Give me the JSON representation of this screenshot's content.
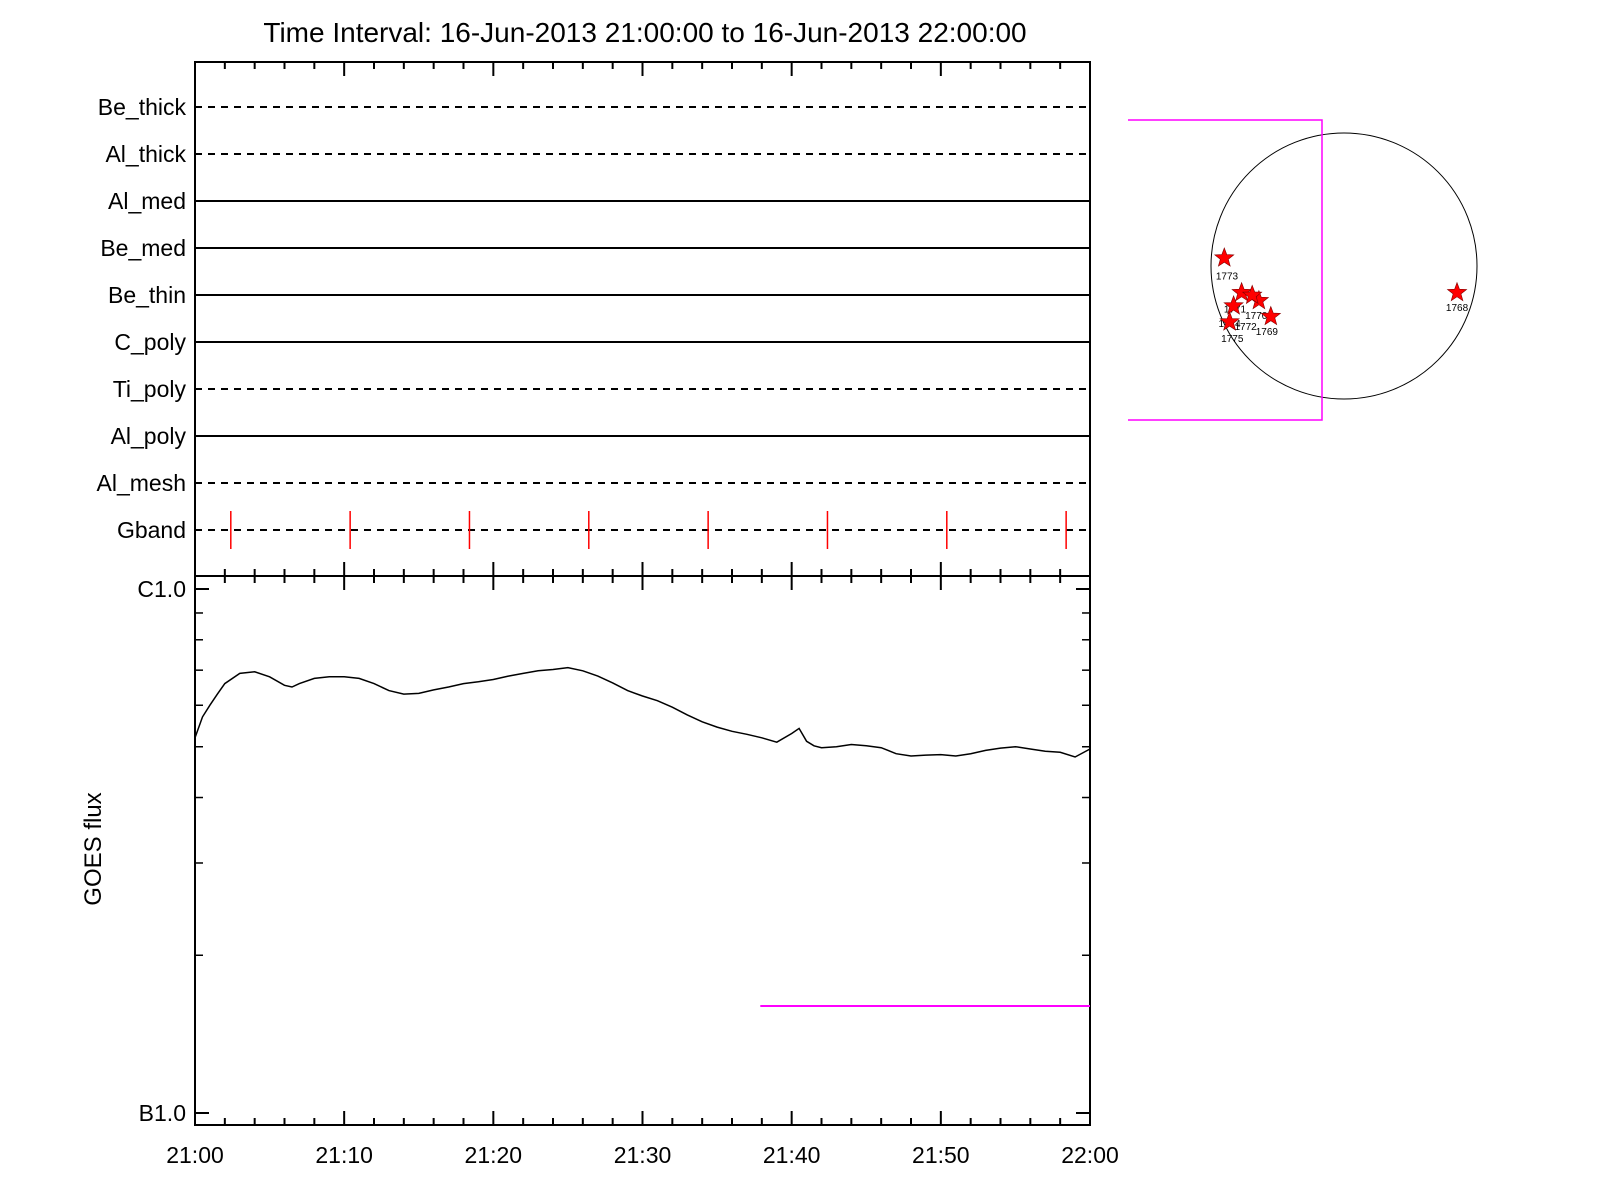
{
  "chart_data": [
    {
      "type": "line",
      "title": "Time Interval: 16-Jun-2013 21:00:00 to 16-Jun-2013 22:00:00",
      "xlim": [
        "21:00",
        "22:00"
      ],
      "x_tick_labels": [
        "21:00",
        "21:10",
        "21:20",
        "21:30",
        "21:40",
        "21:50",
        "22:00"
      ],
      "channels": [
        {
          "name": "Be_thick",
          "style": "dashed"
        },
        {
          "name": "Al_thick",
          "style": "dashed"
        },
        {
          "name": "Al_med",
          "style": "solid"
        },
        {
          "name": "Be_med",
          "style": "solid"
        },
        {
          "name": "Be_thin",
          "style": "solid"
        },
        {
          "name": "C_poly",
          "style": "solid"
        },
        {
          "name": "Ti_poly",
          "style": "dashed"
        },
        {
          "name": "Al_poly",
          "style": "solid"
        },
        {
          "name": "Al_mesh",
          "style": "dashed"
        },
        {
          "name": "Gband",
          "style": "dashed"
        }
      ],
      "gband_markers_min": [
        2.4,
        10.4,
        18.4,
        26.4,
        34.4,
        42.4,
        50.4,
        58.4
      ],
      "marker_color": "#ff0000"
    },
    {
      "type": "line",
      "ylabel": "GOES flux",
      "y_scale": "log",
      "y_tick_labels": [
        "C1.0",
        "B1.0"
      ],
      "xlim": [
        "21:00",
        "22:00"
      ],
      "x_tick_labels": [
        "21:00",
        "21:10",
        "21:20",
        "21:30",
        "21:40",
        "21:50",
        "22:00"
      ],
      "series": [
        {
          "color": "#000000",
          "x_min": [
            0,
            0.5,
            1,
            1.5,
            2,
            3,
            4,
            5,
            6,
            6.5,
            7,
            8,
            9,
            10,
            11,
            12,
            13,
            14,
            15,
            16,
            17,
            18,
            19,
            20,
            21,
            22,
            23,
            24,
            25,
            26,
            27,
            28,
            29,
            30,
            31,
            32,
            33,
            34,
            35,
            36,
            37,
            38,
            39,
            40,
            40.5,
            41,
            41.5,
            42,
            43,
            44,
            45,
            46,
            47,
            48,
            49,
            50,
            51,
            52,
            53,
            54,
            55,
            56,
            57,
            58,
            59,
            60
          ],
          "y_flux": [
            5.2e-07,
            5.7e-07,
            6e-07,
            6.3e-07,
            6.6e-07,
            6.9e-07,
            6.95e-07,
            6.8e-07,
            6.55e-07,
            6.5e-07,
            6.6e-07,
            6.75e-07,
            6.8e-07,
            6.8e-07,
            6.75e-07,
            6.6e-07,
            6.4e-07,
            6.3e-07,
            6.32e-07,
            6.42e-07,
            6.5e-07,
            6.6e-07,
            6.65e-07,
            6.72e-07,
            6.82e-07,
            6.9e-07,
            6.98e-07,
            7.02e-07,
            7.08e-07,
            6.98e-07,
            6.82e-07,
            6.62e-07,
            6.4e-07,
            6.25e-07,
            6.12e-07,
            5.95e-07,
            5.75e-07,
            5.58e-07,
            5.45e-07,
            5.35e-07,
            5.28e-07,
            5.2e-07,
            5.1e-07,
            5.3e-07,
            5.42e-07,
            5.12e-07,
            5.02e-07,
            4.98e-07,
            5e-07,
            5.05e-07,
            5.02e-07,
            4.98e-07,
            4.85e-07,
            4.8e-07,
            4.82e-07,
            4.83e-07,
            4.8e-07,
            4.85e-07,
            4.92e-07,
            4.97e-07,
            5e-07,
            4.95e-07,
            4.9e-07,
            4.88e-07,
            4.78e-07,
            4.95e-07
          ]
        },
        {
          "color": "#ff00ff",
          "x_min": [
            37.9,
            60
          ],
          "y_flux": [
            1.6e-07,
            1.6e-07
          ]
        }
      ]
    },
    {
      "type": "scatter",
      "description_labels": [
        "1773",
        "1771",
        "1770",
        "1772",
        "1774",
        "1775",
        "1769",
        "1768"
      ],
      "points": [
        {
          "label": "1773"
        },
        {
          "label": "1771"
        },
        {
          "label": "1770"
        },
        {
          "label": "1772"
        },
        {
          "label": "1774"
        },
        {
          "label": "1775"
        },
        {
          "label": "1769"
        },
        {
          "label": "1768"
        }
      ],
      "marker": "star",
      "marker_color": "#ff0000",
      "box_color": "#ff00ff"
    }
  ]
}
